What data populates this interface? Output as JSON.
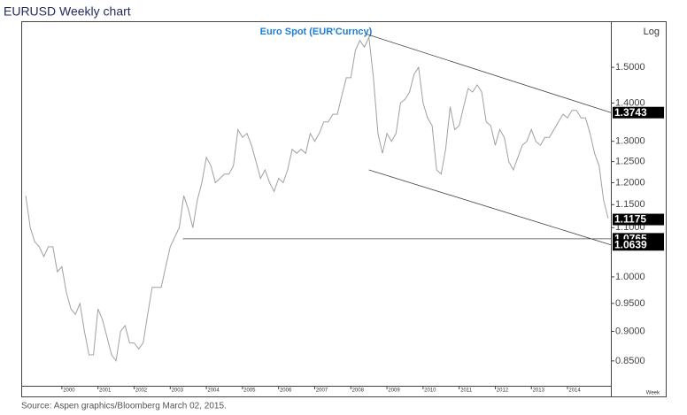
{
  "chart_data": {
    "type": "line",
    "title": "EURUSD Weekly chart",
    "legend": "Euro  Spot  (EUR'Curncy)",
    "scale_label": "Log",
    "x_unit": "Week",
    "source": "Source: Aspen graphics/Bloomberg March 02, 2015.",
    "log_scale": true,
    "xlim": [
      1998.9,
      2015.2
    ],
    "ylim": [
      0.81,
      1.64
    ],
    "xticks": [
      2000,
      2001,
      2002,
      2003,
      2004,
      2005,
      2006,
      2007,
      2008,
      2009,
      2010,
      2011,
      2012,
      2013,
      2014
    ],
    "yticks": [
      {
        "value": 0.85,
        "label": "0.8500"
      },
      {
        "value": 0.9,
        "label": "0.9000"
      },
      {
        "value": 0.95,
        "label": "0.9500"
      },
      {
        "value": 1.0,
        "label": "1.0000"
      },
      {
        "value": 1.1,
        "label": "1.1000"
      },
      {
        "value": 1.15,
        "label": "1.1500"
      },
      {
        "value": 1.2,
        "label": "1.2000"
      },
      {
        "value": 1.25,
        "label": "1.2500"
      },
      {
        "value": 1.3,
        "label": "1.3000"
      },
      {
        "value": 1.4,
        "label": "1.4000"
      },
      {
        "value": 1.5,
        "label": "1.5000"
      }
    ],
    "series": [
      {
        "color": "#a0a0a0",
        "x": [
          1999.0,
          1999.125,
          1999.25,
          1999.375,
          1999.5,
          1999.625,
          1999.75,
          1999.875,
          2000.0,
          2000.125,
          2000.25,
          2000.375,
          2000.5,
          2000.625,
          2000.75,
          2000.875,
          2001.0,
          2001.125,
          2001.25,
          2001.375,
          2001.5,
          2001.625,
          2001.75,
          2001.875,
          2002.0,
          2002.125,
          2002.25,
          2002.375,
          2002.5,
          2002.625,
          2002.75,
          2002.875,
          2003.0,
          2003.125,
          2003.25,
          2003.375,
          2003.5,
          2003.625,
          2003.75,
          2003.875,
          2004.0,
          2004.125,
          2004.25,
          2004.375,
          2004.5,
          2004.625,
          2004.75,
          2004.875,
          2005.0,
          2005.125,
          2005.25,
          2005.375,
          2005.5,
          2005.625,
          2005.75,
          2005.875,
          2006.0,
          2006.125,
          2006.25,
          2006.375,
          2006.5,
          2006.625,
          2006.75,
          2006.875,
          2007.0,
          2007.125,
          2007.25,
          2007.375,
          2007.5,
          2007.625,
          2007.75,
          2007.875,
          2008.0,
          2008.125,
          2008.25,
          2008.375,
          2008.5,
          2008.625,
          2008.75,
          2008.875,
          2009.0,
          2009.125,
          2009.25,
          2009.375,
          2009.5,
          2009.625,
          2009.75,
          2009.875,
          2010.0,
          2010.125,
          2010.25,
          2010.375,
          2010.5,
          2010.625,
          2010.75,
          2010.875,
          2011.0,
          2011.125,
          2011.25,
          2011.375,
          2011.5,
          2011.625,
          2011.75,
          2011.875,
          2012.0,
          2012.125,
          2012.25,
          2012.375,
          2012.5,
          2012.625,
          2012.75,
          2012.875,
          2013.0,
          2013.125,
          2013.25,
          2013.375,
          2013.5,
          2013.625,
          2013.75,
          2013.875,
          2014.0,
          2014.125,
          2014.25,
          2014.375,
          2014.5,
          2014.625,
          2014.75,
          2014.875,
          2015.0,
          2015.125
        ],
        "values": [
          1.17,
          1.1,
          1.07,
          1.06,
          1.04,
          1.06,
          1.06,
          1.01,
          1.02,
          0.97,
          0.94,
          0.93,
          0.95,
          0.9,
          0.86,
          0.86,
          0.94,
          0.92,
          0.89,
          0.86,
          0.85,
          0.9,
          0.91,
          0.88,
          0.88,
          0.87,
          0.88,
          0.93,
          0.98,
          0.98,
          0.98,
          1.02,
          1.06,
          1.08,
          1.1,
          1.17,
          1.14,
          1.1,
          1.16,
          1.2,
          1.26,
          1.24,
          1.2,
          1.21,
          1.22,
          1.22,
          1.24,
          1.33,
          1.31,
          1.32,
          1.29,
          1.25,
          1.21,
          1.23,
          1.2,
          1.18,
          1.21,
          1.2,
          1.23,
          1.28,
          1.27,
          1.28,
          1.27,
          1.32,
          1.3,
          1.32,
          1.35,
          1.35,
          1.37,
          1.37,
          1.42,
          1.47,
          1.47,
          1.55,
          1.58,
          1.56,
          1.59,
          1.47,
          1.32,
          1.27,
          1.32,
          1.3,
          1.32,
          1.4,
          1.41,
          1.43,
          1.48,
          1.5,
          1.4,
          1.36,
          1.34,
          1.23,
          1.22,
          1.28,
          1.39,
          1.33,
          1.34,
          1.39,
          1.44,
          1.43,
          1.45,
          1.43,
          1.35,
          1.34,
          1.29,
          1.33,
          1.31,
          1.25,
          1.23,
          1.26,
          1.29,
          1.3,
          1.33,
          1.3,
          1.29,
          1.31,
          1.31,
          1.33,
          1.35,
          1.37,
          1.36,
          1.38,
          1.38,
          1.36,
          1.36,
          1.32,
          1.27,
          1.24,
          1.16,
          1.12
        ]
      }
    ],
    "trendlines": [
      {
        "x": [
          2008.42,
          2015.2
        ],
        "y": [
          1.6,
          1.3743
        ]
      },
      {
        "x": [
          2008.5,
          2015.2
        ],
        "y": [
          1.23,
          1.0639
        ]
      },
      {
        "x": [
          2003.35,
          2015.2
        ],
        "y": [
          1.0765,
          1.0765
        ]
      }
    ],
    "markers": [
      1.3743,
      1.1175,
      1.0765,
      1.0639
    ]
  }
}
